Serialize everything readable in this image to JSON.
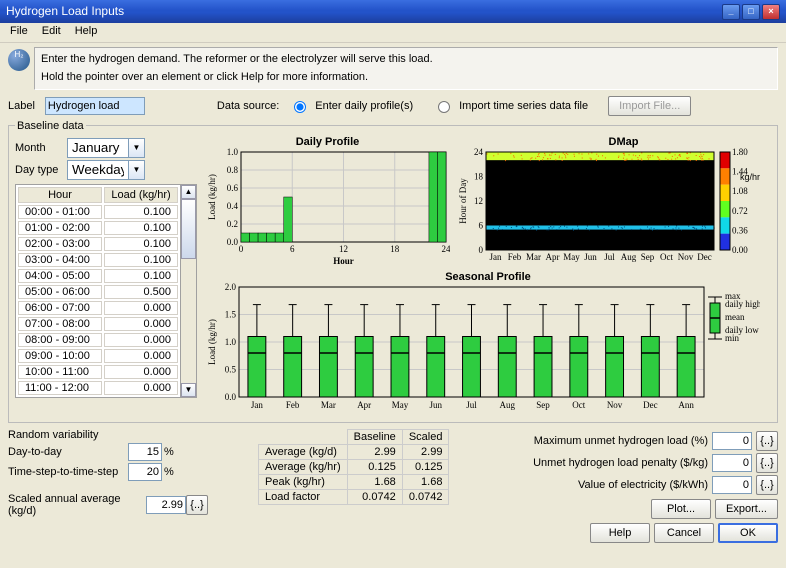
{
  "window": {
    "title": "Hydrogen Load Inputs"
  },
  "menu": {
    "file": "File",
    "edit": "Edit",
    "help": "Help"
  },
  "titlebar_icons": {
    "min": "minimize-icon",
    "max": "maximize-icon",
    "close": "close-icon"
  },
  "info": {
    "line1": "Enter the hydrogen demand.  The reformer or the electrolyzer will serve this load.",
    "line2": "Hold the pointer over an element or click Help for more information.",
    "icon_label": "H₂"
  },
  "label_row": {
    "label_text": "Label",
    "label_value": "Hydrogen load",
    "data_source_label": "Data source:",
    "opt_daily": "Enter daily profile(s)",
    "opt_import": "Import time series data file",
    "import_btn": "Import File..."
  },
  "baseline": {
    "legend": "Baseline data",
    "month_label": "Month",
    "month_value": "January",
    "daytype_label": "Day type",
    "daytype_value": "Weekday"
  },
  "hour_table": {
    "col_hour": "Hour",
    "col_load": "Load (kg/hr)",
    "rows": [
      {
        "h": "00:00 - 01:00",
        "v": "0.100"
      },
      {
        "h": "01:00 - 02:00",
        "v": "0.100"
      },
      {
        "h": "02:00 - 03:00",
        "v": "0.100"
      },
      {
        "h": "03:00 - 04:00",
        "v": "0.100"
      },
      {
        "h": "04:00 - 05:00",
        "v": "0.100"
      },
      {
        "h": "05:00 - 06:00",
        "v": "0.500"
      },
      {
        "h": "06:00 - 07:00",
        "v": "0.000"
      },
      {
        "h": "07:00 - 08:00",
        "v": "0.000"
      },
      {
        "h": "08:00 - 09:00",
        "v": "0.000"
      },
      {
        "h": "09:00 - 10:00",
        "v": "0.000"
      },
      {
        "h": "10:00 - 11:00",
        "v": "0.000"
      },
      {
        "h": "11:00 - 12:00",
        "v": "0.000"
      }
    ]
  },
  "daily_chart": {
    "title": "Daily Profile",
    "ylabel": "Load (kg/hr)",
    "xlabel": "Hour",
    "ylim": [
      0,
      1.0
    ],
    "ytick": [
      0.0,
      0.2,
      0.4,
      0.6,
      0.8,
      1.0
    ],
    "xlim": [
      0,
      24
    ],
    "xtick": [
      0,
      6,
      12,
      18,
      24
    ],
    "bar_color": "#2ecc40",
    "grid_color": "#c8c8c8",
    "background": "#ffffff",
    "bars": [
      {
        "x": 0,
        "h": 0.1
      },
      {
        "x": 1,
        "h": 0.1
      },
      {
        "x": 2,
        "h": 0.1
      },
      {
        "x": 3,
        "h": 0.1
      },
      {
        "x": 4,
        "h": 0.1
      },
      {
        "x": 5,
        "h": 0.5
      },
      {
        "x": 22,
        "h": 1.0
      },
      {
        "x": 23,
        "h": 1.0
      }
    ]
  },
  "dmap": {
    "title": "DMap",
    "ylabel": "Hour of Day",
    "ylim": [
      0,
      24
    ],
    "ytick": [
      0,
      6,
      12,
      18,
      24
    ],
    "months": [
      "Jan",
      "Feb",
      "Mar",
      "Apr",
      "May",
      "Jun",
      "Jul",
      "Aug",
      "Sep",
      "Oct",
      "Nov",
      "Dec"
    ],
    "bg_color": "#000000",
    "band_top_y": [
      22,
      24
    ],
    "band_top_color": "#d0ff30",
    "band_mid_y": [
      5,
      6
    ],
    "band_mid_color": "#20c0e8",
    "legend_title": "kg/hr",
    "legend_ticks": [
      "1.80",
      "1.44",
      "1.08",
      "0.72",
      "0.36",
      "0.00"
    ],
    "legend_colors": [
      "#e00000",
      "#ff8000",
      "#ffd000",
      "#60ff20",
      "#10d8e8",
      "#2030e0"
    ]
  },
  "seasonal": {
    "title": "Seasonal Profile",
    "ylabel": "Load (kg/hr)",
    "ylim": [
      0,
      2.0
    ],
    "ytick": [
      0.0,
      0.5,
      1.0,
      1.5,
      2.0
    ],
    "months": [
      "Jan",
      "Feb",
      "Mar",
      "Apr",
      "May",
      "Jun",
      "Jul",
      "Aug",
      "Sep",
      "Oct",
      "Nov",
      "Dec",
      "Ann"
    ],
    "box_color": "#2ecc40",
    "whisker_top": 1.68,
    "p75": 1.1,
    "median": 0.8,
    "p25": 0.0,
    "whisker_bot": 0.0,
    "legend": {
      "max": "max",
      "dh": "daily high",
      "mean": "mean",
      "dl": "daily low",
      "min": "min"
    }
  },
  "random_var": {
    "legend": "Random variability",
    "dtd_label": "Day-to-day",
    "dtd_value": "15",
    "dtd_unit": "%",
    "tsts_label": "Time-step-to-time-step",
    "tsts_value": "20",
    "tsts_unit": "%"
  },
  "scaled_avg": {
    "label": "Scaled annual average (kg/d)",
    "value": "2.99",
    "curly": "{..}"
  },
  "stats": {
    "col_base": "Baseline",
    "col_scaled": "Scaled",
    "rows": [
      {
        "l": "Average (kg/d)",
        "b": "2.99",
        "s": "2.99"
      },
      {
        "l": "Average (kg/hr)",
        "b": "0.125",
        "s": "0.125"
      },
      {
        "l": "Peak (kg/hr)",
        "b": "1.68",
        "s": "1.68"
      },
      {
        "l": "Load factor",
        "b": "0.0742",
        "s": "0.0742"
      }
    ]
  },
  "right_params": {
    "max_unmet_label": "Maximum unmet hydrogen load (%)",
    "max_unmet_value": "0",
    "penalty_label": "Unmet hydrogen load penalty ($/kg)",
    "penalty_value": "0",
    "elec_label": "Value of electricity ($/kWh)",
    "elec_value": "0",
    "curly": "{..}"
  },
  "buttons": {
    "plot": "Plot...",
    "export": "Export...",
    "help": "Help",
    "cancel": "Cancel",
    "ok": "OK"
  }
}
